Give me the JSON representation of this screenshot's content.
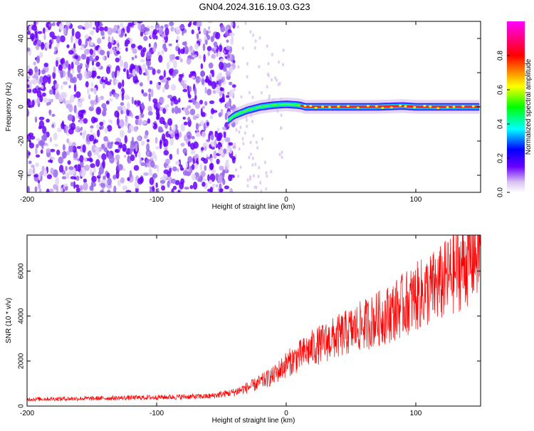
{
  "figure": {
    "title": "GN04.2024.316.19.03.G23"
  },
  "chart_data": [
    {
      "type": "heatmap",
      "xlabel": "Height of straight line (km)",
      "ylabel": "Frequency (Hz)",
      "xlim": [
        -200,
        150
      ],
      "ylim": [
        -50,
        50
      ],
      "x_ticks": [
        -200,
        -100,
        0,
        100
      ],
      "y_ticks": [
        -40,
        -20,
        0,
        20,
        40
      ],
      "colorbar": {
        "label": "Normalized spectral amplitude",
        "range": [
          0,
          1
        ],
        "ticks": [
          "0.0",
          "0.2",
          "0.4",
          "0.6",
          "0.8"
        ],
        "colors": [
          "#ffffff",
          "#d9c2f2",
          "#6a00ff",
          "#0000ff",
          "#00ffff",
          "#00ff00",
          "#ffff00",
          "#ff0000",
          "#ff00ff"
        ]
      },
      "noise_region_x": [
        -200,
        -40
      ],
      "ridge": {
        "description_values": "frequency trace (Hz) vs height (km)",
        "x": [
          -45,
          -40,
          -30,
          -20,
          -10,
          0,
          10,
          15,
          30,
          50,
          70,
          90,
          100,
          150
        ],
        "y": [
          -8,
          -5,
          -2,
          0,
          1,
          1.5,
          1,
          0,
          0,
          0,
          0,
          0.5,
          0,
          0
        ]
      },
      "grid": false
    },
    {
      "type": "line",
      "xlabel": "Height of straight line (km)",
      "ylabel": "SNR (10 * v/v)",
      "xlim": [
        -200,
        150
      ],
      "ylim": [
        0,
        7600
      ],
      "x_ticks": [
        -200,
        -100,
        0,
        100
      ],
      "y_ticks": [
        0,
        2000,
        4000,
        6000
      ],
      "line_color": "#ff0000",
      "series": [
        {
          "trend_x": [
            -200,
            -150,
            -100,
            -60,
            -40,
            -25,
            -10,
            0,
            20,
            40,
            60,
            80,
            100,
            120,
            150
          ],
          "trend_y": [
            300,
            330,
            380,
            420,
            600,
            900,
            1300,
            1800,
            2500,
            3000,
            3500,
            4000,
            4700,
            5300,
            6800
          ]
        }
      ],
      "grid": false
    }
  ]
}
